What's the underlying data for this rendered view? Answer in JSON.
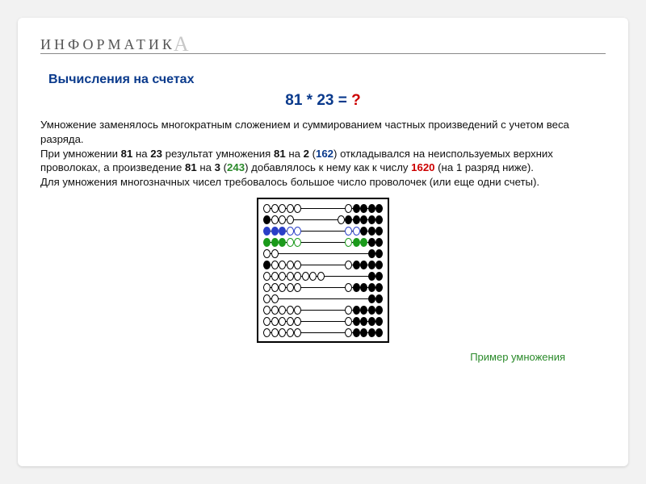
{
  "brand_prefix": "ИНФОРМАТИК",
  "brand_accent": "А",
  "title": "Вычисления на счетах",
  "equation_lhs": "81 * 23 = ",
  "equation_q": "?",
  "paragraph_html": "Умножение заменялось многократным сложением и суммированием частных произведений с учетом веса разряда.<br>При умножении <b>81</b> на <b>23</b> результат умножения <b>81</b> на <b>2</b> (<span class='n162'>162</span>) откладывался на неиспользуемых верхних проволоках, а произведение <b>81</b> на <b>3</b> (<span class='n243'>243</span>) добавлялось к нему как к числу <span class='n1620'>1620</span> (на 1 разряд ниже).<br>Для умножения многозначных чисел требовалось большое число проволочек (или еще одни счеты).",
  "caption": "Пример умножения",
  "abacus": {
    "frame_color": "#000000",
    "bg": "#ffffff",
    "rows": [
      {
        "total": 10,
        "left": [
          "w",
          "w",
          "w",
          "w",
          "w"
        ],
        "right": [
          "w",
          "b",
          "b",
          "b",
          "b"
        ]
      },
      {
        "total": 10,
        "left": [
          "b",
          "w",
          "w",
          "w"
        ],
        "right": [
          "w",
          "b",
          "b",
          "b",
          "b",
          "b"
        ]
      },
      {
        "total": 10,
        "left": [
          "u",
          "u",
          "u",
          "wu",
          "wu"
        ],
        "right": [
          "wu",
          "wu",
          "b",
          "b",
          "b"
        ]
      },
      {
        "total": 10,
        "left": [
          "g",
          "g",
          "g",
          "wg",
          "wg"
        ],
        "right": [
          "wg",
          "g",
          "g",
          "b",
          "b"
        ]
      },
      {
        "total": 4,
        "left": [
          "w",
          "w"
        ],
        "right": [
          "b",
          "b"
        ]
      },
      {
        "total": 10,
        "left": [
          "b",
          "w",
          "w",
          "w",
          "w"
        ],
        "right": [
          "w",
          "b",
          "b",
          "b",
          "b"
        ]
      },
      {
        "total": 10,
        "left": [
          "w",
          "w",
          "w",
          "w",
          "w",
          "w",
          "w",
          "w"
        ],
        "right": [
          "b",
          "b"
        ]
      },
      {
        "total": 10,
        "left": [
          "w",
          "w",
          "w",
          "w",
          "w"
        ],
        "right": [
          "w",
          "b",
          "b",
          "b",
          "b"
        ]
      },
      {
        "total": 4,
        "left": [
          "w",
          "w"
        ],
        "right": [
          "b",
          "b"
        ]
      },
      {
        "total": 10,
        "left": [
          "w",
          "w",
          "w",
          "w",
          "w"
        ],
        "right": [
          "w",
          "b",
          "b",
          "b",
          "b"
        ]
      },
      {
        "total": 10,
        "left": [
          "w",
          "w",
          "w",
          "w",
          "w"
        ],
        "right": [
          "w",
          "b",
          "b",
          "b",
          "b"
        ]
      },
      {
        "total": 10,
        "left": [
          "w",
          "w",
          "w",
          "w",
          "w"
        ],
        "right": [
          "w",
          "b",
          "b",
          "b",
          "b"
        ]
      }
    ],
    "colors": {
      "b": "#000000",
      "w": "#ffffff",
      "u": "#2a3fc7",
      "g": "#1a9a1a"
    }
  },
  "typography": {
    "title_fontsize": 16,
    "title_color": "#0a3a8c",
    "body_fontsize": 13.2,
    "eq_fontsize": 19
  }
}
